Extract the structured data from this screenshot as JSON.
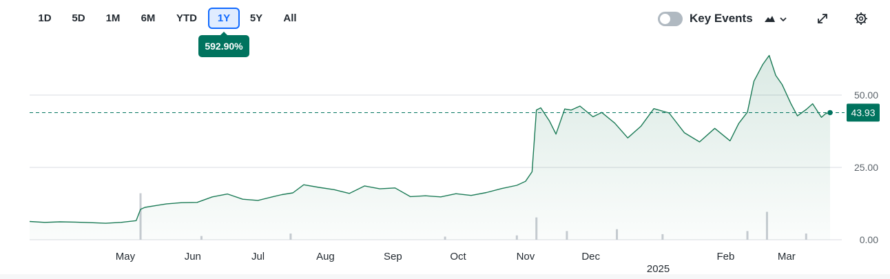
{
  "toolbar": {
    "ranges": [
      "1D",
      "5D",
      "1M",
      "6M",
      "YTD",
      "1Y",
      "5Y",
      "All"
    ],
    "active_range": "1Y",
    "key_events_label": "Key Events",
    "key_events_on": false,
    "icons": {
      "chart_type": "mountain-chart-icon",
      "expand": "expand-icon",
      "settings": "gear-icon"
    }
  },
  "return_badge": "592.90%",
  "colors": {
    "line": "#1a7a55",
    "accent": "#00735e",
    "active_button": "#0f69ff",
    "grid": "#d8dbe0",
    "volume": "#c8ccd2"
  },
  "chart_data": {
    "type": "area",
    "y_ticks": [
      "0.00",
      "25.00",
      "50.00"
    ],
    "ylim": [
      0,
      68
    ],
    "x_ticks": [
      {
        "label": "May",
        "date": "2024-05-01"
      },
      {
        "label": "Jun",
        "date": "2024-06-01"
      },
      {
        "label": "Jul",
        "date": "2024-07-01"
      },
      {
        "label": "Aug",
        "date": "2024-08-01"
      },
      {
        "label": "Sep",
        "date": "2024-09-01"
      },
      {
        "label": "Oct",
        "date": "2024-10-01"
      },
      {
        "label": "Nov",
        "date": "2024-11-01"
      },
      {
        "label": "Dec",
        "date": "2024-12-01"
      },
      {
        "label": "Feb",
        "date": "2025-02-01"
      },
      {
        "label": "Mar",
        "date": "2025-03-01"
      }
    ],
    "year_label": "2025",
    "current_price": 43.93,
    "current_price_label": "43.93",
    "series": [
      {
        "x": [
          "2024-03-18",
          "2024-03-25",
          "2024-04-01",
          "2024-04-08",
          "2024-04-15",
          "2024-04-22",
          "2024-04-29",
          "2024-05-06",
          "2024-05-08",
          "2024-05-10",
          "2024-05-15",
          "2024-05-20",
          "2024-05-27",
          "2024-06-03",
          "2024-06-10",
          "2024-06-17",
          "2024-06-24",
          "2024-07-01",
          "2024-07-08",
          "2024-07-12",
          "2024-07-17",
          "2024-07-22",
          "2024-07-29",
          "2024-08-05",
          "2024-08-12",
          "2024-08-19",
          "2024-08-26",
          "2024-09-02",
          "2024-09-09",
          "2024-09-16",
          "2024-09-23",
          "2024-09-30",
          "2024-10-07",
          "2024-10-14",
          "2024-10-21",
          "2024-10-28",
          "2024-11-01",
          "2024-11-04",
          "2024-11-06",
          "2024-11-08",
          "2024-11-12",
          "2024-11-15",
          "2024-11-19",
          "2024-11-22",
          "2024-11-26",
          "2024-12-02",
          "2024-12-06",
          "2024-12-12",
          "2024-12-18",
          "2024-12-24",
          "2024-12-30",
          "2025-01-06",
          "2025-01-13",
          "2025-01-20",
          "2025-01-27",
          "2025-02-03",
          "2025-02-07",
          "2025-02-11",
          "2025-02-14",
          "2025-02-18",
          "2025-02-21",
          "2025-02-24",
          "2025-02-27",
          "2025-03-03",
          "2025-03-06",
          "2025-03-10",
          "2025-03-13",
          "2025-03-17",
          "2025-03-19",
          "2025-03-21"
        ],
        "y": [
          6.3,
          6.0,
          6.2,
          6.1,
          5.9,
          5.7,
          6.0,
          6.6,
          10.5,
          11.2,
          11.8,
          12.4,
          12.8,
          12.9,
          14.8,
          15.8,
          14.0,
          13.6,
          14.9,
          15.6,
          16.2,
          19.0,
          18.1,
          17.3,
          16.0,
          18.6,
          17.6,
          17.9,
          14.9,
          15.2,
          14.8,
          15.9,
          15.3,
          16.3,
          17.7,
          18.8,
          20.2,
          23.5,
          44.8,
          45.6,
          41.0,
          36.5,
          45.2,
          44.8,
          46.2,
          42.5,
          44.0,
          40.3,
          35.2,
          39.2,
          45.3,
          43.8,
          37.0,
          33.8,
          38.5,
          34.2,
          40.2,
          44.1,
          54.8,
          60.5,
          63.7,
          56.8,
          53.6,
          47.0,
          42.8,
          45.0,
          47.0,
          42.3,
          43.6,
          43.93
        ]
      }
    ],
    "volume": {
      "x": [
        "2024-05-08",
        "2024-06-05",
        "2024-07-16",
        "2024-09-25",
        "2024-10-28",
        "2024-11-06",
        "2024-11-20",
        "2024-12-13",
        "2025-01-03",
        "2025-02-11",
        "2025-02-20",
        "2025-03-10"
      ],
      "relative": [
        0.75,
        0.06,
        0.1,
        0.05,
        0.07,
        0.36,
        0.14,
        0.17,
        0.09,
        0.14,
        0.45,
        0.1
      ]
    }
  }
}
